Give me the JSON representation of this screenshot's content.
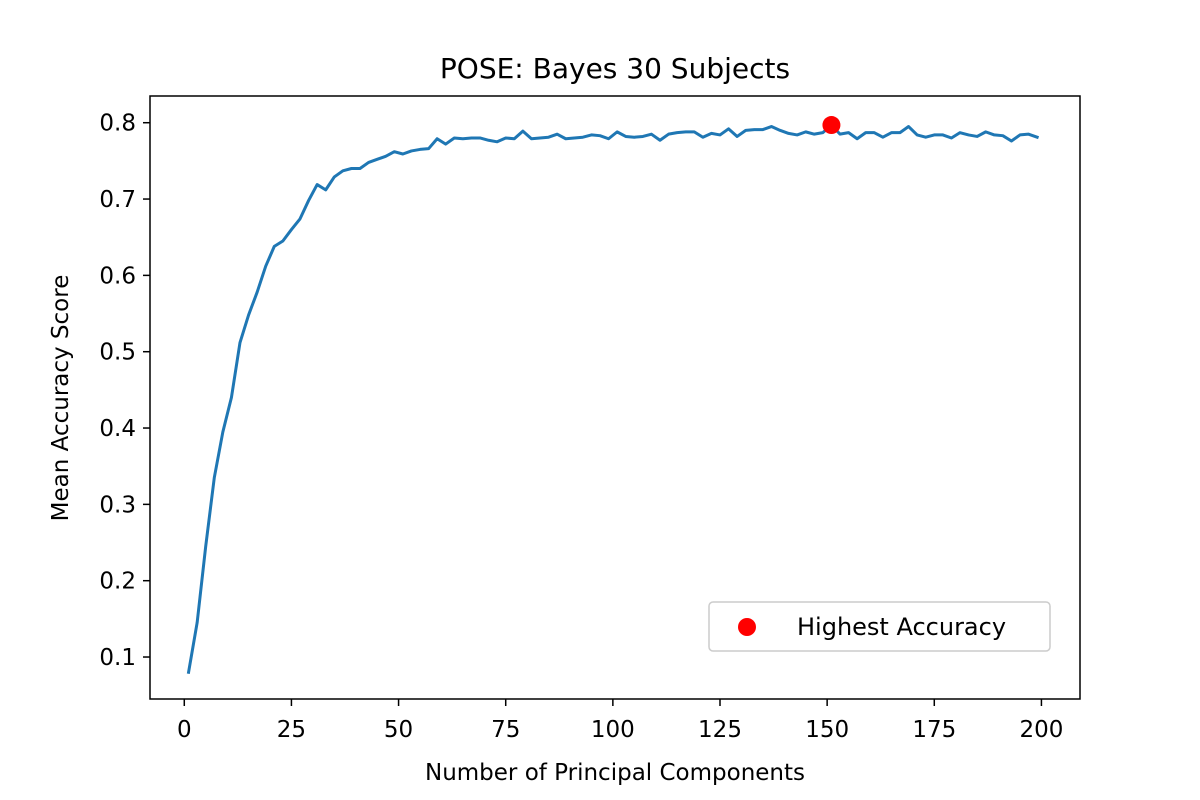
{
  "chart_data": {
    "type": "line",
    "title": "POSE: Bayes 30 Subjects",
    "xlabel": "Number of Principal Components",
    "ylabel": "Mean Accuracy Score",
    "xlim": [
      -8,
      209
    ],
    "ylim": [
      0.045,
      0.835
    ],
    "xticks": [
      0,
      25,
      50,
      75,
      100,
      125,
      150,
      175,
      200
    ],
    "yticks": [
      0.1,
      0.2,
      0.3,
      0.4,
      0.5,
      0.6,
      0.7,
      0.8
    ],
    "grid": false,
    "legend_position": "lower-right",
    "series": [
      {
        "color": "#1f77b4",
        "x": [
          1,
          3,
          5,
          7,
          9,
          11,
          13,
          15,
          17,
          19,
          21,
          23,
          25,
          27,
          29,
          31,
          33,
          35,
          37,
          39,
          41,
          43,
          45,
          47,
          49,
          51,
          53,
          55,
          57,
          59,
          61,
          63,
          65,
          67,
          69,
          71,
          73,
          75,
          77,
          79,
          81,
          83,
          85,
          87,
          89,
          91,
          93,
          95,
          97,
          99,
          101,
          103,
          105,
          107,
          109,
          111,
          113,
          115,
          117,
          119,
          121,
          123,
          125,
          127,
          129,
          131,
          133,
          135,
          137,
          139,
          141,
          143,
          145,
          147,
          149,
          151,
          153,
          155,
          157,
          159,
          161,
          163,
          165,
          167,
          169,
          171,
          173,
          175,
          177,
          179,
          181,
          183,
          185,
          187,
          189,
          191,
          193,
          195,
          197,
          199
        ],
        "values": [
          0.08,
          0.145,
          0.245,
          0.335,
          0.395,
          0.44,
          0.512,
          0.548,
          0.578,
          0.612,
          0.638,
          0.645,
          0.66,
          0.674,
          0.698,
          0.719,
          0.712,
          0.729,
          0.737,
          0.74,
          0.74,
          0.748,
          0.752,
          0.756,
          0.762,
          0.759,
          0.763,
          0.765,
          0.766,
          0.779,
          0.772,
          0.78,
          0.779,
          0.78,
          0.78,
          0.777,
          0.775,
          0.78,
          0.779,
          0.789,
          0.779,
          0.78,
          0.781,
          0.785,
          0.779,
          0.78,
          0.781,
          0.784,
          0.783,
          0.779,
          0.788,
          0.782,
          0.781,
          0.782,
          0.785,
          0.777,
          0.785,
          0.787,
          0.788,
          0.788,
          0.781,
          0.786,
          0.784,
          0.792,
          0.782,
          0.79,
          0.791,
          0.791,
          0.795,
          0.79,
          0.786,
          0.784,
          0.788,
          0.785,
          0.787,
          0.797,
          0.785,
          0.787,
          0.779,
          0.787,
          0.787,
          0.781,
          0.787,
          0.787,
          0.795,
          0.784,
          0.781,
          0.784,
          0.784,
          0.78,
          0.787,
          0.784,
          0.782,
          0.788,
          0.784,
          0.783,
          0.776,
          0.784,
          0.785,
          0.781
        ]
      }
    ],
    "highlight": {
      "label": "Highest Accuracy",
      "x": 151,
      "y": 0.797,
      "color": "#ff0000"
    }
  }
}
